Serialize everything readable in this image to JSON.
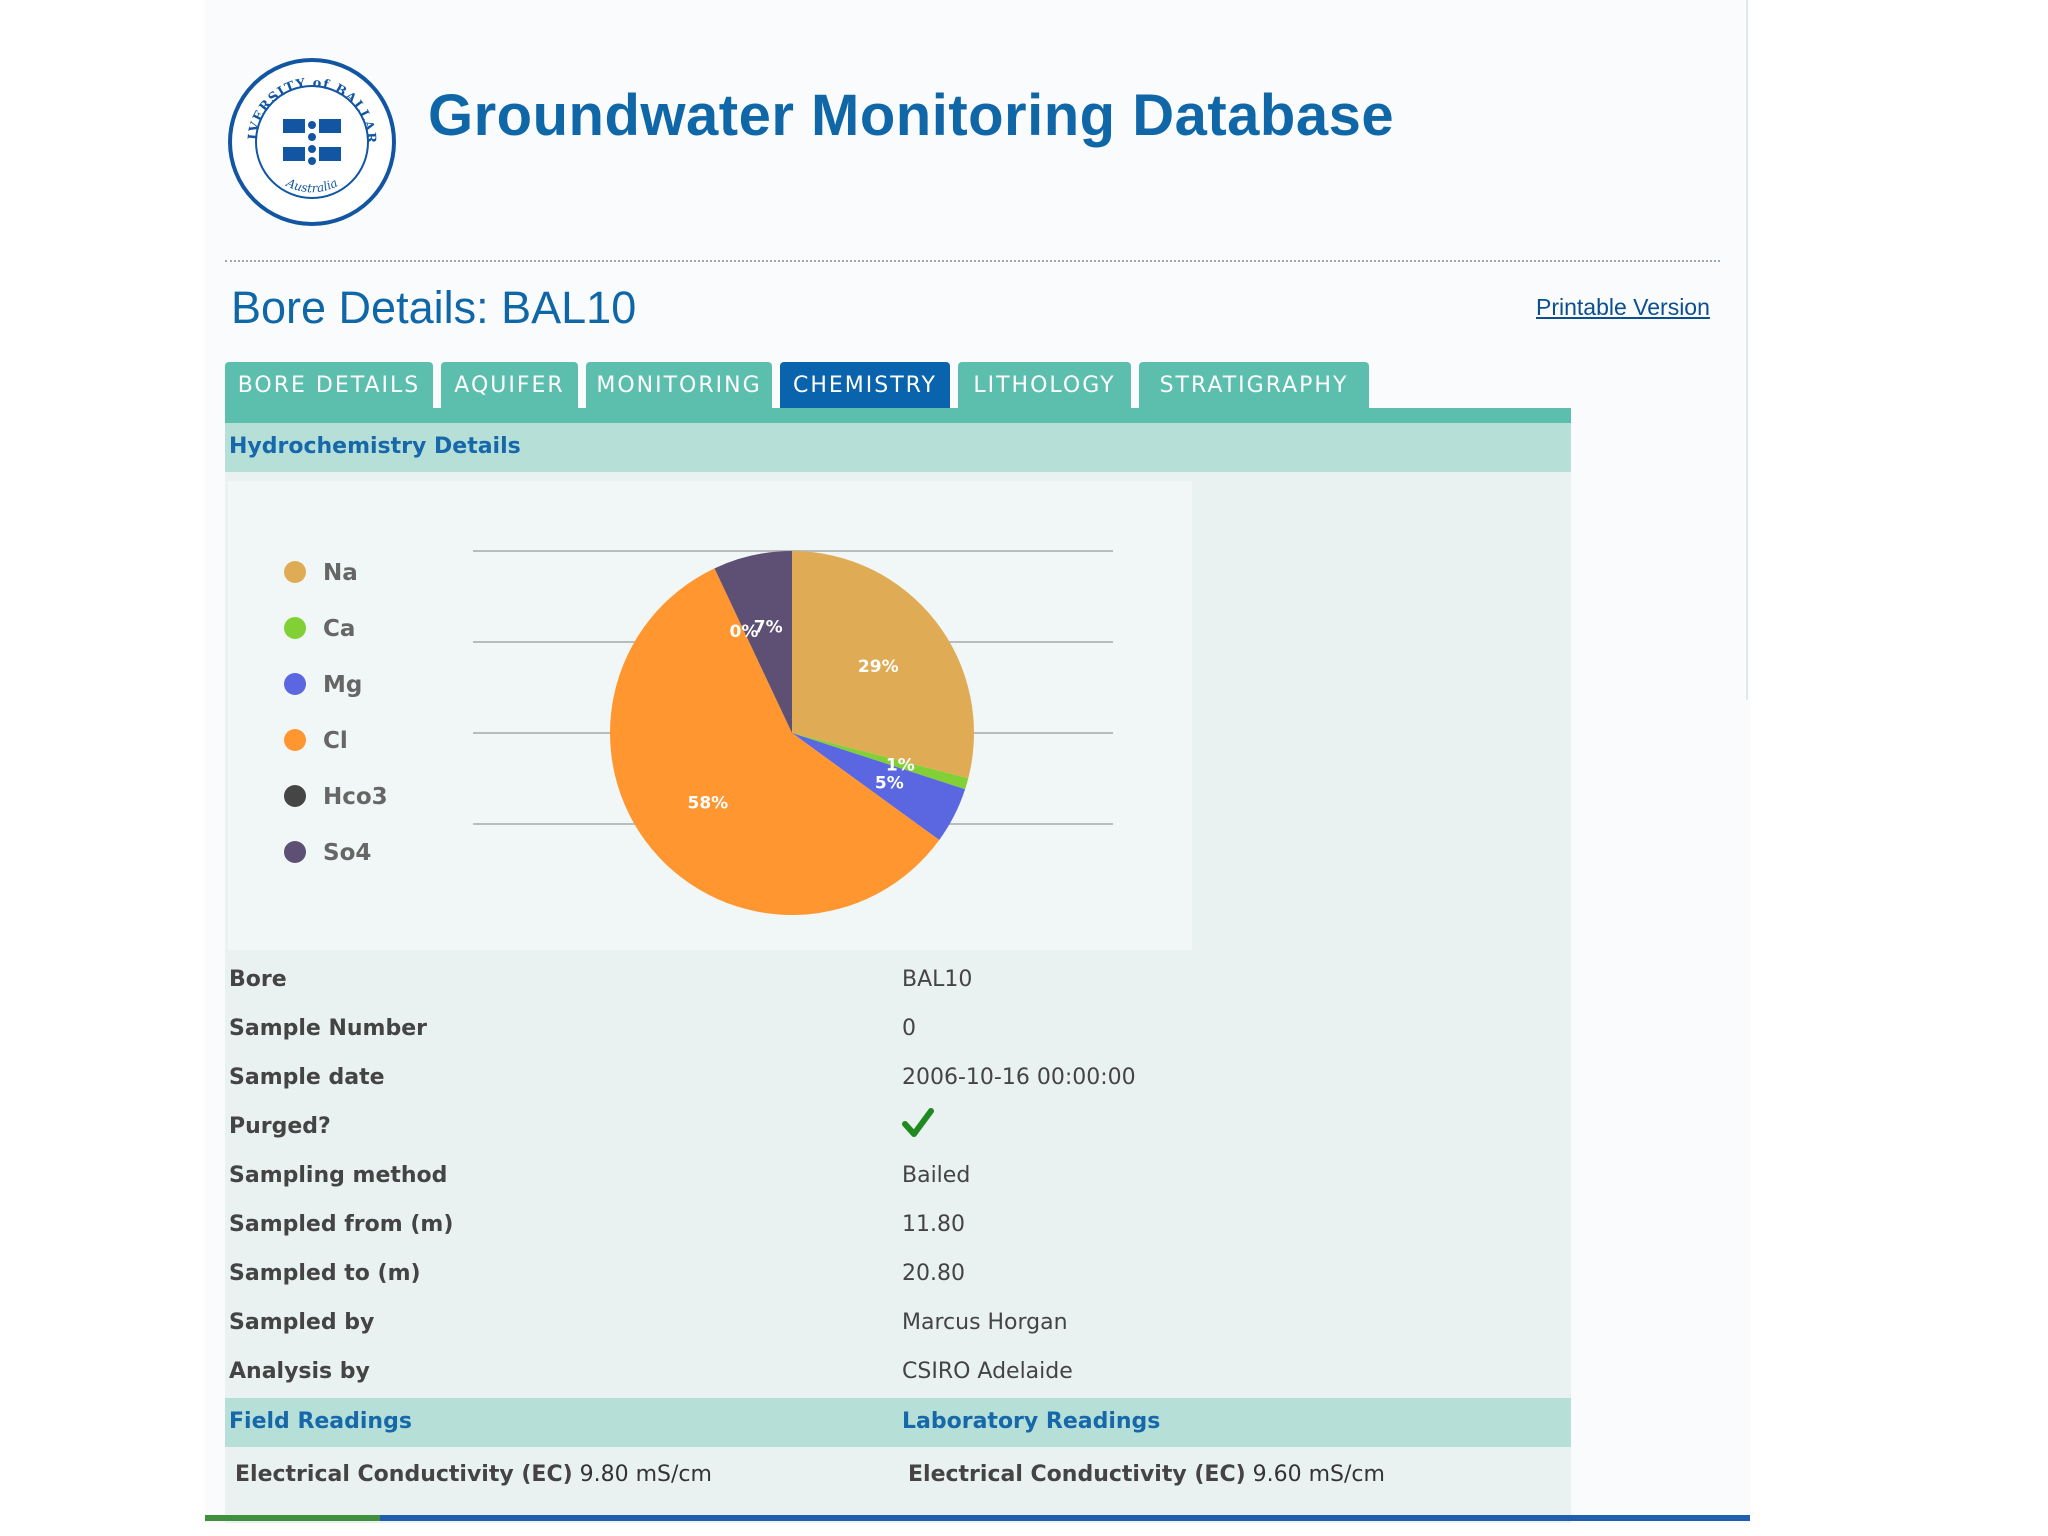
{
  "header": {
    "site_title": "Groundwater Monitoring Database",
    "logo": {
      "icon": "university-seal-logo",
      "top_text": "UNIVERSITY of BALLARAT",
      "bottom_text": "Australia"
    }
  },
  "page": {
    "title": "Bore Details: BAL10",
    "printable_link": "Printable Version"
  },
  "tabs": [
    {
      "label": "BORE DETAILS",
      "active": false
    },
    {
      "label": "AQUIFER",
      "active": false
    },
    {
      "label": "MONITORING",
      "active": false
    },
    {
      "label": "CHEMISTRY",
      "active": true
    },
    {
      "label": "LITHOLOGY",
      "active": false
    },
    {
      "label": "STRATIGRAPHY",
      "active": false
    }
  ],
  "section": {
    "title": "Hydrochemistry Details"
  },
  "chart_data": {
    "type": "pie",
    "legend_position": "left",
    "gridlines": true,
    "slices": [
      {
        "label": "Na",
        "value": 29,
        "display": "29%",
        "color": "#dfac55"
      },
      {
        "label": "Ca",
        "value": 1,
        "display": "1%",
        "color": "#80d036"
      },
      {
        "label": "Mg",
        "value": 5,
        "display": "5%",
        "color": "#5a67e0"
      },
      {
        "label": "Cl",
        "value": 58,
        "display": "58%",
        "color": "#ff9630"
      },
      {
        "label": "Hco3",
        "value": 0,
        "display": "0%",
        "color": "#454545"
      },
      {
        "label": "So4",
        "value": 7,
        "display": "7%",
        "color": "#5d5074"
      }
    ]
  },
  "details": {
    "bore": {
      "label": "Bore",
      "value": "BAL10"
    },
    "sample_number": {
      "label": "Sample Number",
      "value": "0"
    },
    "sample_date": {
      "label": "Sample date",
      "value": "2006-10-16 00:00:00"
    },
    "purged": {
      "label": "Purged?",
      "value": "yes",
      "icon": "checkmark-icon",
      "color": "#1f8a1f"
    },
    "sampling_method": {
      "label": "Sampling method",
      "value": "Bailed"
    },
    "sampled_from": {
      "label": "Sampled from (m)",
      "value": "11.80"
    },
    "sampled_to": {
      "label": "Sampled to (m)",
      "value": "20.80"
    },
    "sampled_by": {
      "label": "Sampled by",
      "value": "Marcus Horgan"
    },
    "analysis_by": {
      "label": "Analysis by",
      "value": "CSIRO Adelaide"
    }
  },
  "readings": {
    "field_title": "Field Readings",
    "lab_title": "Laboratory Readings",
    "field_ec": {
      "label": "Electrical Conductivity (EC)",
      "value": "9.80 mS/cm"
    },
    "lab_ec": {
      "label": "Electrical Conductivity (EC)",
      "value": "9.60 mS/cm"
    }
  },
  "colors": {
    "accent": "#0f67a8",
    "tab": "#5cbfae",
    "tab_active": "#0a63ad",
    "section_header": "#b6e0d7"
  }
}
